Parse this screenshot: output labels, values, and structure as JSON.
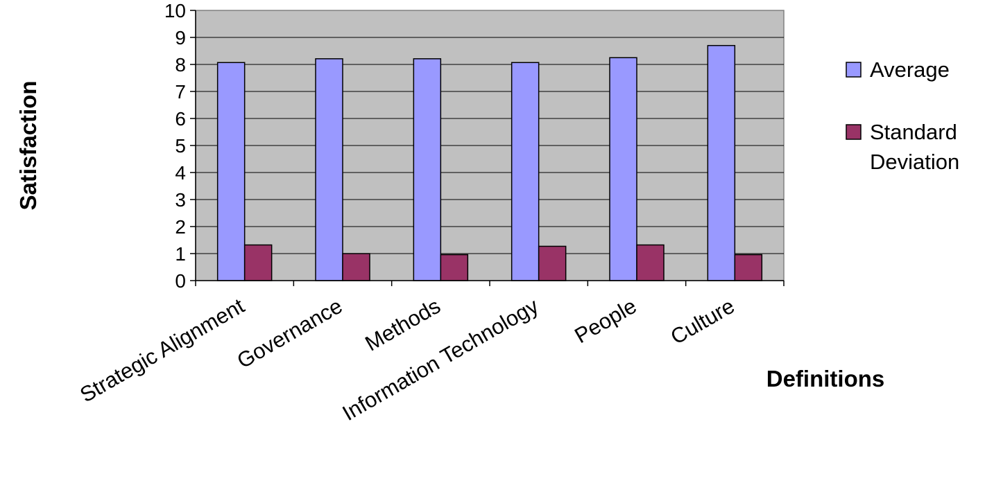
{
  "chart_data": {
    "type": "bar",
    "categories": [
      "Strategic Alignment",
      "Governance",
      "Methods",
      "Information Technology",
      "People",
      "Culture"
    ],
    "series": [
      {
        "name": "Average",
        "values": [
          8.07,
          8.21,
          8.21,
          8.07,
          8.25,
          8.7
        ],
        "color": "#9999ff"
      },
      {
        "name": "Standard Deviation",
        "values": [
          1.32,
          1.0,
          0.96,
          1.27,
          1.32,
          0.96
        ],
        "color": "#993366"
      }
    ],
    "xlabel": "Definitions",
    "ylabel": "Satisfaction",
    "ylim": [
      0,
      10
    ],
    "yticks": [
      "0",
      "1",
      "2",
      "3",
      "4",
      "5",
      "6",
      "7",
      "8",
      "9",
      "10"
    ],
    "grid": true,
    "legend": {
      "placement": "right",
      "entries": [
        {
          "lines": [
            "Average"
          ]
        },
        {
          "lines": [
            "Standard",
            "Deviation"
          ]
        }
      ]
    },
    "plot_background": "#c0c0c0"
  }
}
